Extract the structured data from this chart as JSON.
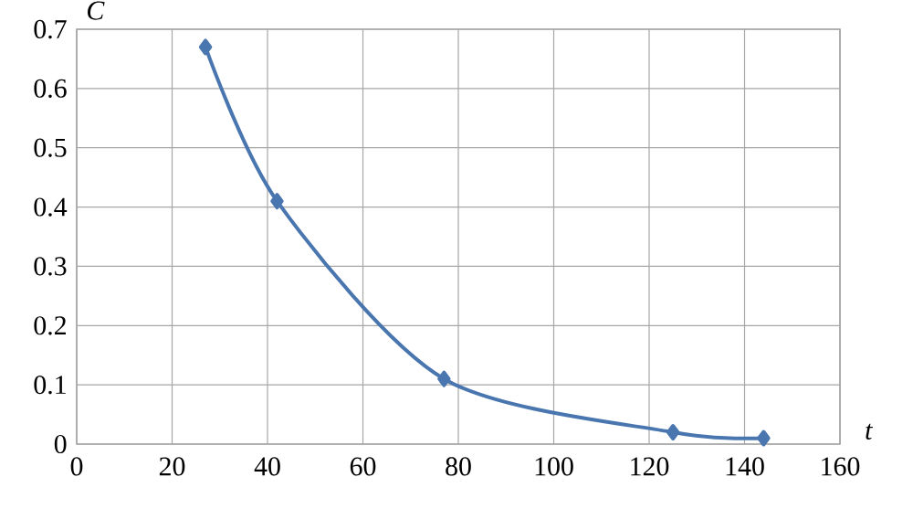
{
  "chart_data": {
    "type": "line",
    "xlabel": "t",
    "ylabel": "C",
    "x": [
      27,
      42,
      77,
      125,
      144
    ],
    "series": [
      {
        "color": "#4a76b0",
        "values": [
          0.67,
          0.41,
          0.11,
          0.02,
          0.01
        ]
      }
    ],
    "xlim": [
      0,
      160
    ],
    "ylim": [
      0,
      0.7
    ],
    "xticks": [
      0,
      20,
      40,
      60,
      80,
      100,
      120,
      140,
      160
    ],
    "yticks": [
      0,
      0.1,
      0.2,
      0.3,
      0.4,
      0.5,
      0.6,
      0.7
    ],
    "grid": true,
    "marker": "diamond",
    "line_style": "solid"
  }
}
